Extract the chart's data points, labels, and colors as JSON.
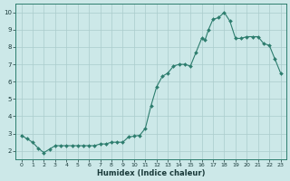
{
  "xlabel": "Humidex (Indice chaleur)",
  "line_color": "#2d7d6e",
  "marker_color": "#2d7d6e",
  "bg_color": "#cce8e8",
  "grid_color": "#aacccc",
  "ylim": [
    1.5,
    10.5
  ],
  "xlim": [
    -0.5,
    23.5
  ],
  "yticks": [
    2,
    3,
    4,
    5,
    6,
    7,
    8,
    9,
    10
  ],
  "xticks": [
    0,
    1,
    2,
    3,
    4,
    5,
    6,
    7,
    8,
    9,
    10,
    11,
    12,
    13,
    14,
    15,
    16,
    17,
    18,
    19,
    20,
    21,
    22,
    23
  ],
  "x_data": [
    0,
    0.5,
    1,
    1.5,
    2,
    2.5,
    3,
    3.5,
    4,
    4.5,
    5,
    5.5,
    6,
    6.5,
    7,
    7.5,
    8,
    8.5,
    9,
    9.5,
    10,
    10.5,
    11,
    11.5,
    12,
    12.5,
    13,
    13.5,
    14,
    14.5,
    15,
    15.5,
    16,
    16.3,
    16.6,
    17,
    17.5,
    18,
    18.5,
    19,
    19.5,
    20,
    20.5,
    21,
    21.5,
    22,
    22.5,
    23
  ],
  "y_data": [
    2.9,
    2.7,
    2.5,
    2.15,
    1.9,
    2.1,
    2.3,
    2.3,
    2.3,
    2.3,
    2.3,
    2.3,
    2.3,
    2.3,
    2.4,
    2.4,
    2.5,
    2.5,
    2.5,
    2.8,
    2.85,
    2.9,
    3.3,
    4.6,
    5.7,
    6.3,
    6.5,
    6.9,
    7.0,
    7.0,
    6.9,
    7.7,
    8.5,
    8.4,
    9.0,
    9.6,
    9.7,
    10.0,
    9.5,
    8.5,
    8.5,
    8.6,
    8.6,
    8.6,
    8.2,
    8.1,
    7.3,
    6.5
  ]
}
